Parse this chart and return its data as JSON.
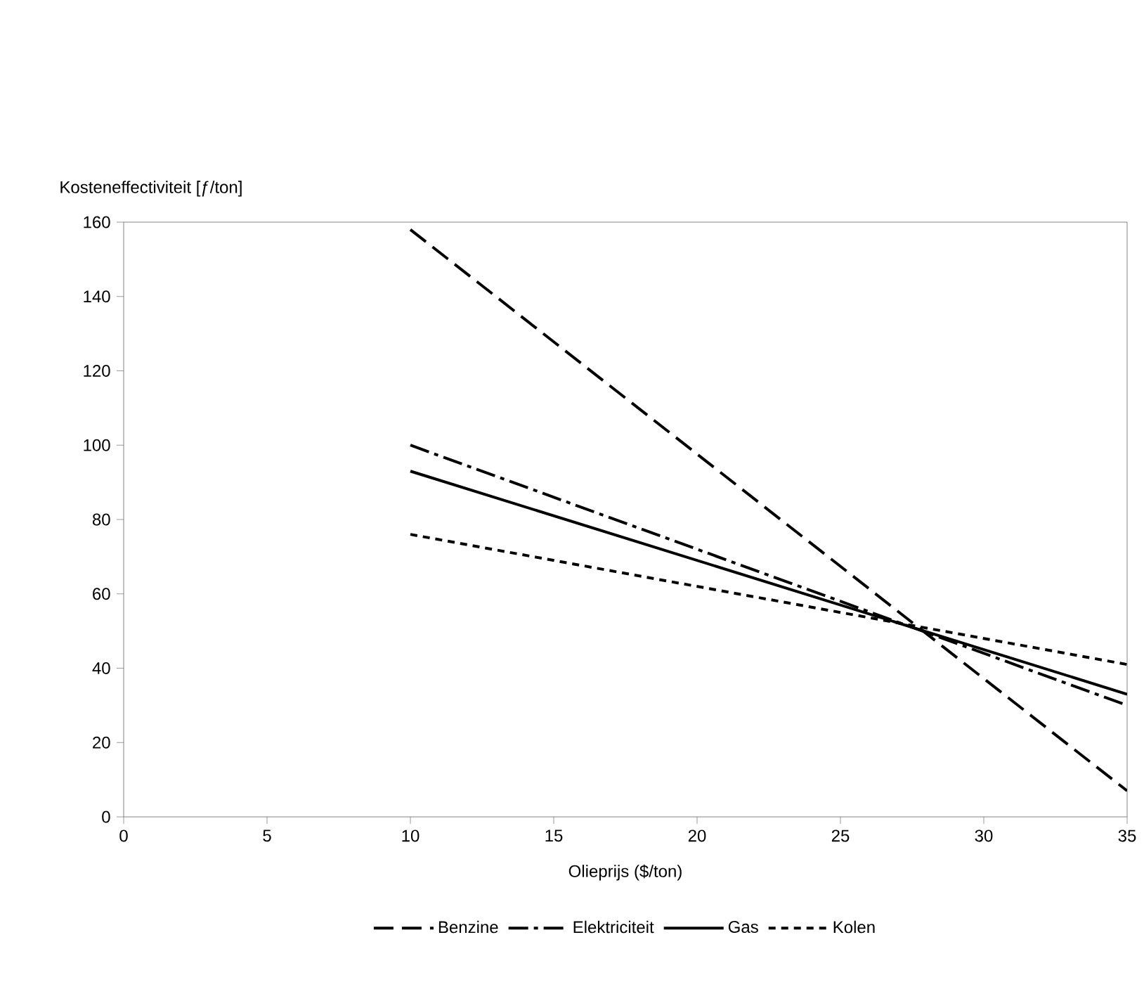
{
  "chart_data": {
    "type": "line",
    "xlabel": "Olieprijs ($/ton)",
    "ylabel": "Kosteneffectiviteit [ƒ/ton]",
    "xlim": [
      0,
      35
    ],
    "xticks": [
      0,
      5,
      10,
      15,
      20,
      25,
      30,
      35
    ],
    "ylim": [
      0,
      160
    ],
    "yticks": [
      0,
      20,
      40,
      60,
      80,
      100,
      120,
      140,
      160
    ],
    "grid": false,
    "legend": "bottom",
    "marker": "none",
    "x": [
      10,
      35
    ],
    "series": [
      {
        "name": "Benzine",
        "color": "#000000",
        "line_style": "dashed",
        "values": [
          158,
          7
        ]
      },
      {
        "name": "Elektriciteit",
        "color": "#000000",
        "line_style": "dashdot",
        "values": [
          100,
          30
        ]
      },
      {
        "name": "Gas",
        "color": "#000000",
        "line_style": "solid",
        "values": [
          93,
          33
        ]
      },
      {
        "name": "Kolen",
        "color": "#000000",
        "line_style": "dotted",
        "values": [
          76,
          41
        ]
      }
    ]
  }
}
